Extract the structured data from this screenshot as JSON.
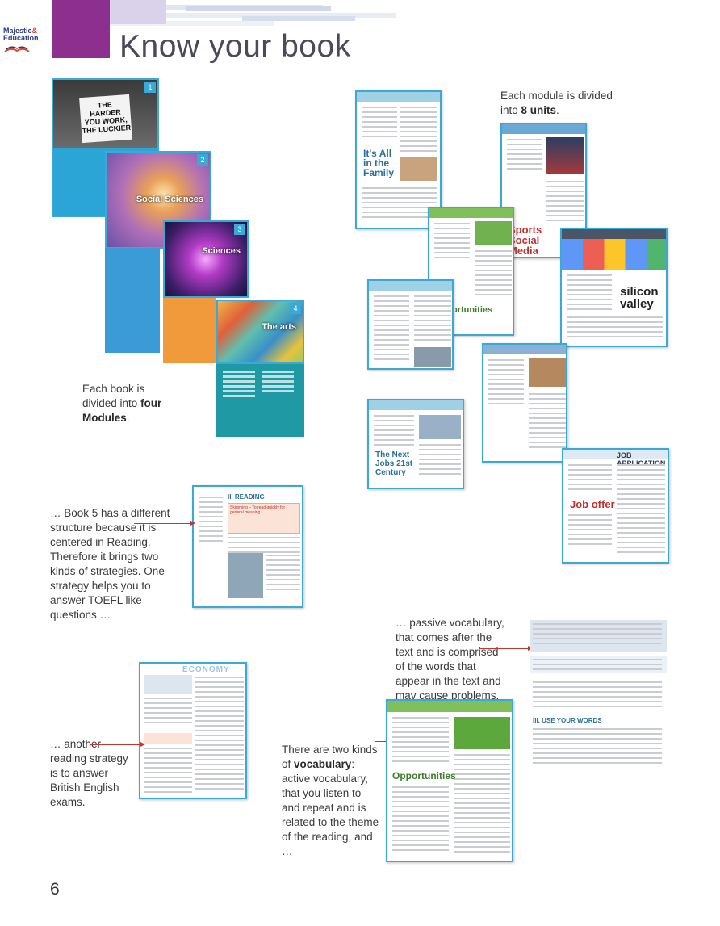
{
  "brand": {
    "line1": "Majestic",
    "amp": "&",
    "line2": "Education"
  },
  "page_title": "Know your book",
  "covers": [
    {
      "label": "",
      "num": "1"
    },
    {
      "label": "Social Sciences",
      "num": "2"
    },
    {
      "label": "Sciences",
      "num": "3"
    },
    {
      "label": "The arts",
      "num": "4"
    }
  ],
  "captions": {
    "units_pre": "Each module is divided into ",
    "units_bold": "8 units",
    "units_post": ".",
    "modules_pre": "Each book is divided into ",
    "modules_bold": "four Modules",
    "modules_post": ".",
    "book5": "… Book 5 has a different structure because it is centered in Reading. Therefore it brings two kinds of strategies. One strategy helps you to answer TOEFL like questions …",
    "passive": "… passive vocabulary, that comes after the text and is comprised of the words that appear in the text and may cause problems.",
    "british": "… another reading strategy is to answer British English exams.",
    "vocab_pre": "There are two kinds of ",
    "vocab_bold": "vocabulary",
    "vocab_post": ": active vocabulary, that you listen to and repeat and is related to the theme of the reading, and …"
  },
  "thumbs": {
    "family_title": "It's All in the Family",
    "sports_title": "Sports Social Media",
    "silicon_title": "silicon valley",
    "job_title": "JOB APPLICATION",
    "job_offer": "Job offer",
    "opportunities": "Opportunities",
    "next_jobs": "The Next Jobs 21st Century",
    "reading_head": "II. READING",
    "skimming_note": "Skimming – To read quickly for general meaning.",
    "economy": "ECONOMY",
    "use_words": "III. USE YOUR WORDS"
  },
  "page_number": "6",
  "colors": {
    "accent_blue": "#3aa9d8",
    "pointer_red": "#c0392b",
    "header_purple": "#8c2f8e"
  }
}
